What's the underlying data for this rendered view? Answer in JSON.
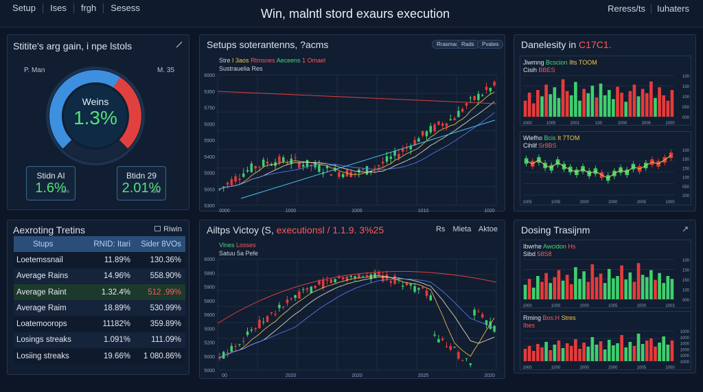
{
  "header": {
    "nav": [
      "Setup",
      "Ises",
      "frgh",
      "Sesess"
    ],
    "title": "Win, malntl stord exaurs execution",
    "right": [
      "Reress/ts",
      "Iuhaters"
    ]
  },
  "left_top": {
    "title": "Stitite's arg gain, i npe lstols",
    "label_left": "P. Man",
    "label_right": "M. 35",
    "gauge_label": "Weins",
    "gauge_value": "1.3%",
    "gauge_percent": 0.62,
    "box1_label": "Stidn AI",
    "box1_value": "1.6%",
    "box1_sub": "A0%",
    "box2_label": "Btidn 29",
    "box2_value": "2.01%",
    "box2_sub": "AB%",
    "colors": {
      "arc_blue": "#3d8fe0",
      "arc_red": "#e0413f",
      "green": "#4fe07a"
    }
  },
  "left_bottom": {
    "title": "Aexroting Tretins",
    "toolbar_label": "Riwin",
    "columns": [
      "Stups",
      "RNID: Itari",
      "Sider 8VOs"
    ],
    "rows": [
      [
        "Loetemssnail",
        "11.89%",
        "130.36%"
      ],
      [
        "Average Rains",
        "14.96%",
        "558.90%"
      ],
      [
        "Average Raint",
        "1.32.4%",
        "512 .99%"
      ],
      [
        "Average Raim",
        "18.89%",
        "530.99%"
      ],
      [
        "Loatemoorops",
        "11182%",
        "359.89%"
      ],
      [
        "Losings streaks",
        "1.091%",
        "111.09%"
      ],
      [
        "Losiing streaks",
        "19.66%",
        "1 080.86%"
      ]
    ]
  },
  "center_top": {
    "title": "Setups soterantenns, ?acms",
    "chips": [
      "Rrasmas",
      "Rads",
      "Pvates"
    ],
    "legend": [
      "Stre",
      "I 3aos",
      "Rtmsnes",
      "Aeceens",
      "1 Omael"
    ],
    "legend2": "Sustrauelia Res",
    "x_labels": [
      "0000",
      "1000",
      "1005",
      "1010",
      "1020"
    ],
    "y_labels": [
      "6000",
      "5350",
      "5750",
      "5000",
      "5500",
      "5400",
      "5000",
      "5003",
      "5300"
    ]
  },
  "center_bottom": {
    "title": "Ailtps Victoy (S,",
    "title_accent": "executionsl / 1.1.9. 3%25",
    "toolbar": [
      "Rs",
      "Mieta",
      "Aktoe"
    ],
    "legend": [
      "Vlnes",
      "Losses"
    ],
    "legend2": "Satuu 5a Pefe",
    "x_labels": [
      "00",
      "2020",
      "2020",
      "2025",
      "2020"
    ],
    "y_labels": [
      "6000",
      "5880",
      "5900",
      "5800",
      "5600",
      "5000",
      "5200",
      "5000",
      "5000"
    ]
  },
  "right_top": {
    "title": "Danelesity in",
    "title_accent": "C17C1.",
    "chart1": {
      "line1": "Jiwmng",
      "line1b": "Bcscion",
      "line1c": "Ilts TOOM",
      "line2": "Cisih",
      "line2b": "BBES",
      "y_labels": [
        "100",
        "150",
        "100",
        "050",
        "000"
      ],
      "x_labels": [
        "1000",
        "1005",
        "2001",
        "100",
        "2000",
        "2005",
        "1000"
      ],
      "bars": [
        30,
        45,
        25,
        50,
        38,
        60,
        42,
        55,
        35,
        70,
        48,
        40,
        65,
        30,
        52,
        44,
        58,
        36,
        62,
        40,
        50,
        33,
        56,
        45,
        28,
        48,
        60,
        38,
        52,
        44,
        66,
        35,
        55,
        40,
        30,
        50
      ]
    },
    "chart2": {
      "line1": "Wlefho",
      "line1b": "Bcis",
      "line1c": "It 7TOM",
      "line2": "Cihlif",
      "line2b": "Sr8BS",
      "y_labels": [
        "100",
        "150",
        "150",
        "100",
        "050",
        "200"
      ],
      "x_labels": [
        "1005",
        "1005",
        "2000",
        "2000",
        "2005",
        "1000"
      ],
      "values": [
        60,
        55,
        62,
        52,
        48,
        58,
        50,
        45,
        40,
        46,
        38,
        42,
        35,
        30,
        38,
        44,
        40,
        50,
        46,
        52,
        58,
        55,
        62,
        70
      ]
    }
  },
  "right_bottom": {
    "title": "Dosing Trasijnm",
    "chart1": {
      "line1": "Ibwrhe",
      "line1b": "Awcidon",
      "line1c": "Hs",
      "line2": "Sibd",
      "line2b": "58S8",
      "y_labels": [
        "100",
        "150",
        "150",
        "100",
        "000"
      ],
      "x_labels": [
        "1000",
        "1000",
        "1000",
        "1005",
        "1000",
        "1003"
      ],
      "bars": [
        25,
        35,
        20,
        40,
        30,
        45,
        28,
        38,
        50,
        32,
        42,
        26,
        55,
        35,
        48,
        30,
        60,
        38,
        44,
        28,
        52,
        36,
        40,
        58,
        34,
        46,
        30,
        62,
        42,
        38,
        50,
        33,
        45,
        28,
        40,
        35
      ]
    },
    "chart2": {
      "line1": "Rming",
      "line1b": "Bos.H",
      "line1c": "Stres",
      "line2": "Ibes",
      "y_labels": [
        "1000",
        "1000",
        "1000",
        "1000",
        "1000",
        "1000"
      ],
      "x_labels": [
        "1000",
        "1000",
        "2000",
        "2000",
        "1005",
        "1000"
      ],
      "bars": [
        18,
        22,
        15,
        25,
        20,
        28,
        16,
        24,
        30,
        19,
        26,
        22,
        32,
        18,
        27,
        21,
        35,
        24,
        29,
        17,
        31,
        23,
        26,
        38,
        20,
        28,
        22,
        40,
        25,
        30,
        33,
        21,
        27,
        36,
        24,
        30
      ]
    }
  }
}
